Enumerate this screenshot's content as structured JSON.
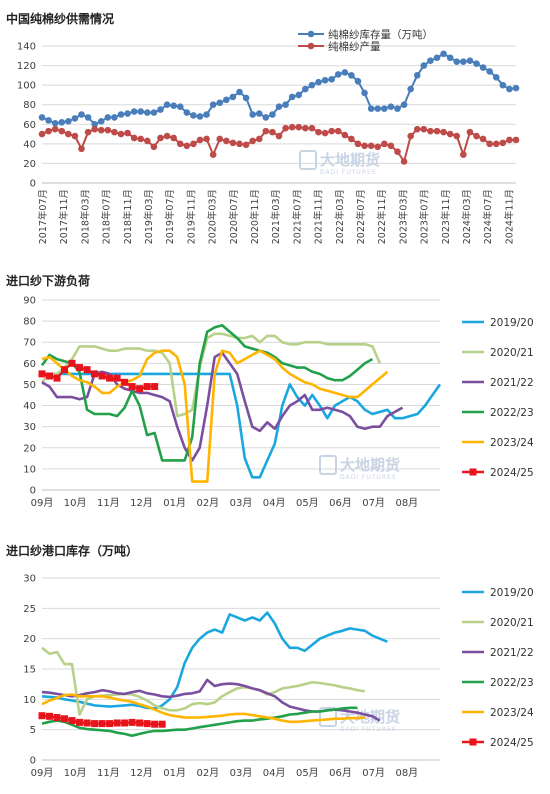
{
  "watermark": {
    "cn": "大地期货",
    "en": "DADI FUTURES"
  },
  "chart_data": [
    {
      "type": "line",
      "title": "中国纯棉纱供需情况",
      "ylim": [
        0,
        140
      ],
      "yticks": [
        0,
        20,
        40,
        60,
        80,
        100,
        120,
        140
      ],
      "grid": true,
      "legend": "top-right",
      "x_labels": [
        "2017年07月",
        "2017年11月",
        "2018年03月",
        "2018年07月",
        "2018年11月",
        "2019年03月",
        "2019年07月",
        "2019年11月",
        "2020年03月",
        "2020年07月",
        "2020年11月",
        "2021年03月",
        "2021年07月",
        "2021年11月",
        "2022年03月",
        "2022年07月",
        "2022年11月",
        "2023年03月",
        "2023年07月",
        "2023年11月",
        "2024年03月",
        "2024年07月",
        "2024年11月"
      ],
      "series": [
        {
          "name": "纯棉纱库存量（万吨）",
          "color": "#4a7ebb",
          "values": [
            67,
            64,
            61,
            62,
            63,
            66,
            70,
            67,
            60,
            63,
            67,
            67,
            70,
            71,
            73,
            73,
            72,
            72,
            75,
            80,
            79,
            78,
            72,
            69,
            68,
            70,
            80,
            82,
            85,
            88,
            93,
            87,
            70,
            71,
            67,
            70,
            78,
            80,
            88,
            90,
            96,
            100,
            103,
            105,
            106,
            111,
            113,
            110,
            104,
            92,
            76,
            76,
            76,
            78,
            76,
            80,
            96,
            110,
            120,
            125,
            128,
            132,
            128,
            124,
            124,
            125,
            122,
            118,
            114,
            108,
            100,
            96,
            97
          ]
        },
        {
          "name": "纯棉纱产量",
          "color": "#be4b48",
          "values": [
            50,
            53,
            55,
            53,
            50,
            48,
            35,
            52,
            55,
            54,
            54,
            52,
            50,
            51,
            46,
            45,
            43,
            37,
            46,
            48,
            46,
            40,
            38,
            40,
            44,
            45,
            29,
            45,
            43,
            41,
            40,
            39,
            43,
            45,
            53,
            52,
            48,
            56,
            57,
            57,
            56,
            56,
            52,
            51,
            53,
            53,
            49,
            45,
            40,
            38,
            38,
            37,
            40,
            38,
            32,
            22,
            48,
            55,
            55,
            53,
            53,
            52,
            50,
            48,
            29,
            52,
            48,
            45,
            40,
            40,
            41,
            44,
            44
          ]
        }
      ]
    },
    {
      "type": "line",
      "title": "进口纱下游负荷",
      "ylim": [
        0,
        90
      ],
      "yticks": [
        0,
        10,
        20,
        30,
        40,
        50,
        60,
        70,
        80,
        90
      ],
      "grid": true,
      "legend": "right",
      "x_labels": [
        "09月",
        "10月",
        "11月",
        "12月",
        "01月",
        "02月",
        "03月",
        "04月",
        "05月",
        "06月",
        "07月",
        "08月"
      ],
      "series": [
        {
          "name": "2019/20",
          "color": "#1aa7e0",
          "values": [
            55,
            55,
            55,
            55,
            55,
            55,
            55,
            55,
            55,
            55,
            55,
            55,
            55,
            55,
            55,
            55,
            55,
            55,
            55,
            55,
            55,
            55,
            55,
            55,
            55,
            55,
            40,
            15,
            6,
            6,
            14,
            22,
            40,
            50,
            44,
            40,
            45,
            40,
            34,
            40,
            42,
            44,
            42,
            38,
            36,
            37,
            38,
            34,
            34,
            35,
            36,
            40,
            45,
            50
          ]
        },
        {
          "name": "2020/21",
          "color": "#b8d18a",
          "values": [
            51,
            55,
            55,
            58,
            62,
            68,
            68,
            68,
            67,
            66,
            66,
            67,
            67,
            67,
            66,
            66,
            65,
            60,
            35,
            36,
            38,
            58,
            72,
            74,
            74,
            73,
            72,
            72,
            73,
            70,
            73,
            73,
            70,
            69,
            69,
            70,
            70,
            70,
            69,
            69,
            69,
            69,
            69,
            69,
            68,
            60
          ]
        },
        {
          "name": "2021/22",
          "color": "#7a4fa0",
          "values": [
            51,
            49,
            44,
            44,
            44,
            43,
            44,
            55,
            56,
            55,
            50,
            48,
            47,
            46,
            46,
            45,
            44,
            42,
            30,
            20,
            14,
            20,
            40,
            63,
            65,
            60,
            55,
            42,
            30,
            28,
            32,
            29,
            35,
            40,
            42,
            45,
            38,
            38,
            39,
            38,
            37,
            35,
            30,
            29,
            30,
            30,
            35,
            37,
            39
          ]
        },
        {
          "name": "2022/23",
          "color": "#22a04a",
          "values": [
            59,
            64,
            62,
            61,
            60,
            56,
            38,
            36,
            36,
            36,
            35,
            39,
            47,
            40,
            26,
            27,
            14,
            14,
            14,
            14,
            25,
            60,
            75,
            77,
            78,
            75,
            72,
            68,
            67,
            66,
            65,
            63,
            60,
            59,
            58,
            58,
            56,
            55,
            53,
            52,
            52,
            54,
            57,
            60,
            62
          ]
        },
        {
          "name": "2023/24",
          "color": "#ffb400",
          "values": [
            62,
            63,
            60,
            57,
            54,
            52,
            51,
            49,
            46,
            46,
            49,
            51,
            52,
            54,
            62,
            65,
            66,
            66,
            63,
            50,
            4,
            4,
            4,
            55,
            66,
            65,
            60,
            62,
            64,
            66,
            64,
            62,
            58,
            55,
            53,
            51,
            50,
            48,
            47,
            46,
            45,
            44,
            44,
            47,
            50,
            53,
            56
          ]
        },
        {
          "name": "2024/25",
          "color": "#e8141b",
          "marker": "square",
          "values": [
            55,
            54,
            53,
            57,
            60,
            58,
            57,
            55,
            54,
            53,
            53,
            51,
            49,
            48,
            49,
            49
          ]
        }
      ]
    },
    {
      "type": "line",
      "title": "进口纱港口库存（万吨）",
      "ylim": [
        0,
        30
      ],
      "yticks": [
        0,
        5,
        10,
        15,
        20,
        25,
        30
      ],
      "grid": true,
      "legend": "right",
      "x_labels": [
        "09月",
        "10月",
        "11月",
        "12月",
        "01月",
        "02月",
        "03月",
        "04月",
        "05月",
        "06月",
        "07月",
        "08月"
      ],
      "series": [
        {
          "name": "2019/20",
          "color": "#1aa7e0",
          "values": [
            10.5,
            10.4,
            10.3,
            10.0,
            9.8,
            9.6,
            9.3,
            9.0,
            8.9,
            8.8,
            8.9,
            9.0,
            9.1,
            8.9,
            8.6,
            8.5,
            9.0,
            10.0,
            12.0,
            16.0,
            18.5,
            20.0,
            21.0,
            21.5,
            21.0,
            24.0,
            23.5,
            23.0,
            23.5,
            23.0,
            24.3,
            22.5,
            20.0,
            18.5,
            18.5,
            18.0,
            19.0,
            20.0,
            20.5,
            21.0,
            21.3,
            21.7,
            21.5,
            21.3,
            20.5,
            20.0,
            19.5
          ]
        },
        {
          "name": "2020/21",
          "color": "#b8d18a",
          "values": [
            18.5,
            17.5,
            17.8,
            15.8,
            15.8,
            7.5,
            10.0,
            10.5,
            10.6,
            10.7,
            10.8,
            10.9,
            10.8,
            10.4,
            9.8,
            9.0,
            8.5,
            8.2,
            8.2,
            8.5,
            9.2,
            9.4,
            9.2,
            9.5,
            10.5,
            11.2,
            11.8,
            12.0,
            11.8,
            11.5,
            10.8,
            11.2,
            11.8,
            12.0,
            12.2,
            12.5,
            12.8,
            12.7,
            12.5,
            12.3,
            12.0,
            11.8,
            11.5,
            11.3
          ]
        },
        {
          "name": "2021/22",
          "color": "#7a4fa0",
          "values": [
            11.2,
            11.1,
            10.9,
            10.7,
            10.5,
            10.7,
            11.0,
            11.2,
            11.5,
            11.3,
            11.0,
            10.9,
            11.2,
            11.4,
            11.0,
            10.8,
            10.5,
            10.4,
            10.6,
            10.9,
            11.0,
            11.3,
            13.2,
            12.2,
            12.5,
            12.6,
            12.5,
            12.2,
            11.8,
            11.5,
            11.0,
            10.5,
            9.5,
            8.8,
            8.5,
            8.2,
            8.0,
            8.0,
            8.2,
            8.3,
            8.2,
            8.0,
            7.8,
            7.5,
            7.2,
            6.5
          ]
        },
        {
          "name": "2022/23",
          "color": "#22a04a",
          "values": [
            6.0,
            6.3,
            6.5,
            6.3,
            5.8,
            5.3,
            5.1,
            5.0,
            4.9,
            4.8,
            4.5,
            4.3,
            4.0,
            4.3,
            4.6,
            4.8,
            4.8,
            4.9,
            5.0,
            5.0,
            5.2,
            5.4,
            5.6,
            5.8,
            6.0,
            6.2,
            6.4,
            6.5,
            6.5,
            6.7,
            6.8,
            7.0,
            7.2,
            7.5,
            7.6,
            7.8,
            8.0,
            8.0,
            8.2,
            8.3,
            8.5,
            8.6,
            8.6
          ]
        },
        {
          "name": "2023/24",
          "color": "#ffb400",
          "values": [
            9.2,
            9.8,
            10.2,
            10.7,
            10.8,
            10.5,
            10.5,
            10.5,
            10.5,
            10.3,
            10.0,
            9.8,
            9.6,
            9.2,
            8.8,
            8.3,
            7.8,
            7.4,
            7.2,
            7.0,
            7.0,
            7.0,
            7.1,
            7.2,
            7.3,
            7.5,
            7.6,
            7.6,
            7.4,
            7.2,
            7.0,
            6.8,
            6.5,
            6.3,
            6.3,
            6.4,
            6.5,
            6.6,
            6.7,
            6.8,
            6.8,
            6.9,
            6.9,
            7.0
          ]
        },
        {
          "name": "2024/25",
          "color": "#e8141b",
          "marker": "square",
          "values": [
            7.3,
            7.2,
            7.0,
            6.8,
            6.5,
            6.2,
            6.1,
            6.0,
            6.0,
            6.0,
            6.1,
            6.1,
            6.2,
            6.1,
            6.0,
            5.9,
            5.9
          ]
        }
      ]
    }
  ]
}
